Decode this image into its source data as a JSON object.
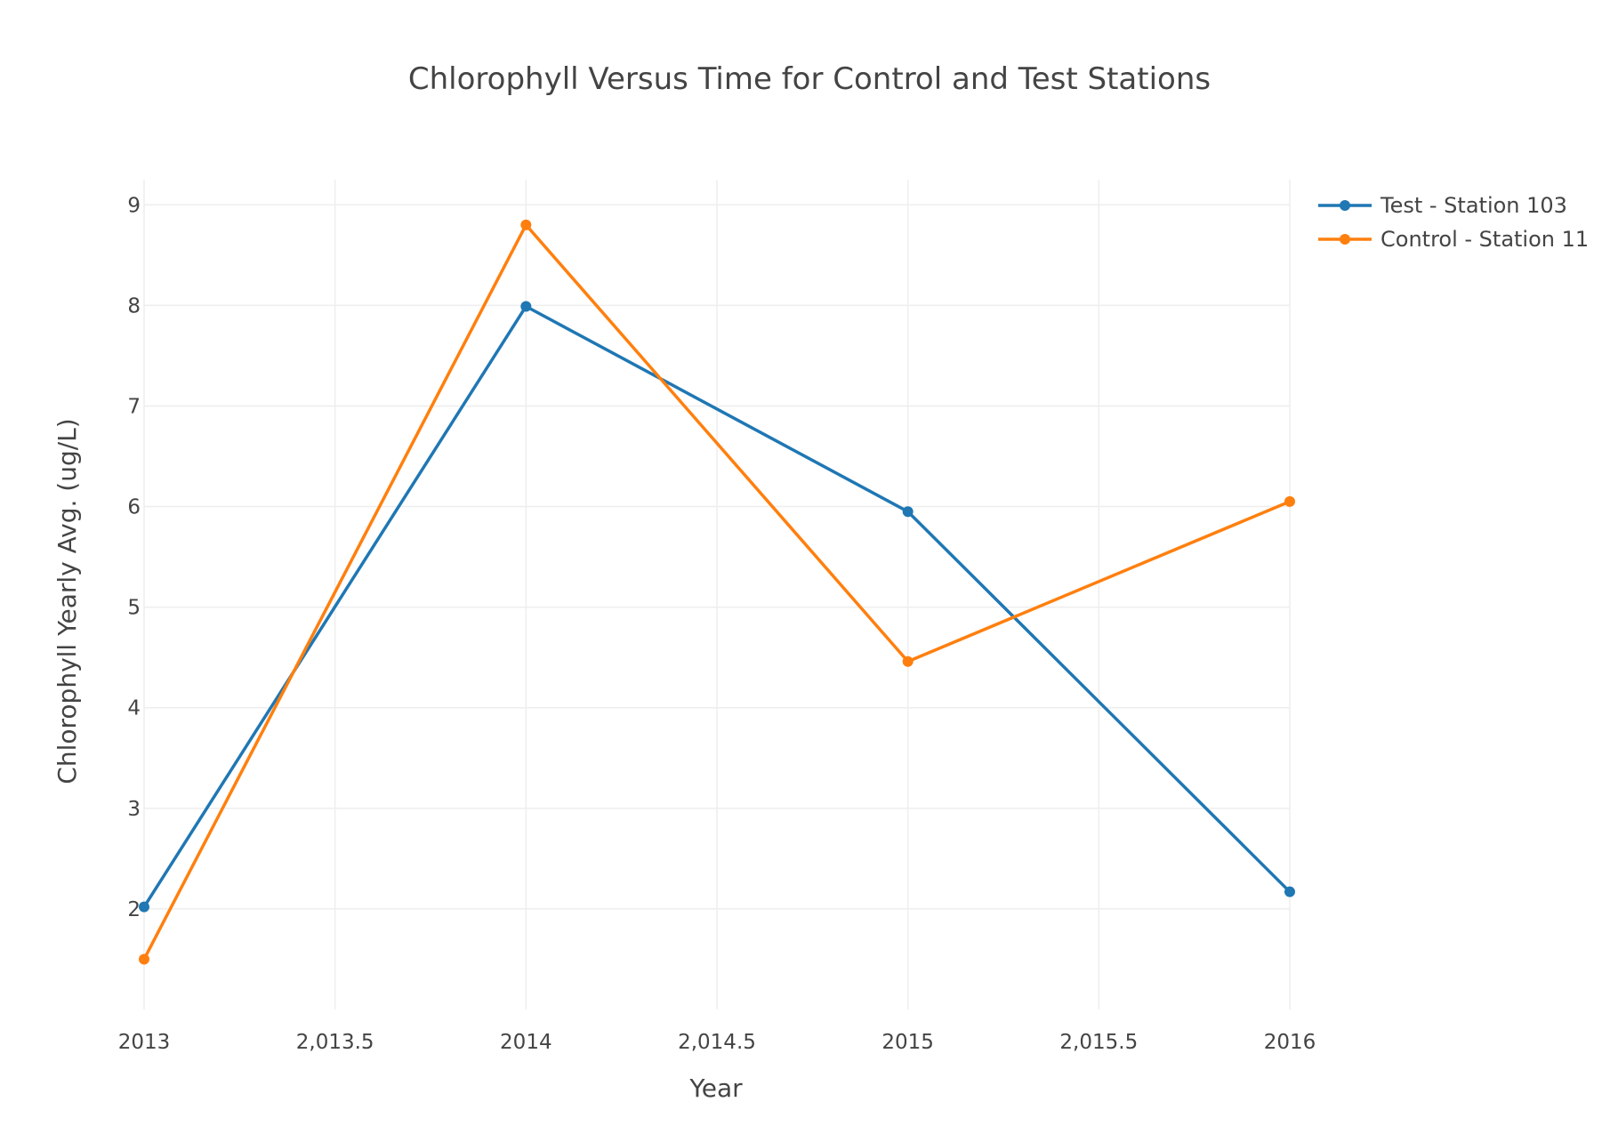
{
  "chart_data": {
    "type": "line",
    "title": "Chlorophyll Versus Time for Control and Test Stations",
    "xlabel": "Year",
    "ylabel": "Chlorophyll Yearly Avg. (ug/L)",
    "xlim": [
      2013,
      2016
    ],
    "ylim": [
      1.0,
      9.25
    ],
    "xticks": [
      2013,
      2013.5,
      2014,
      2014.5,
      2015,
      2015.5,
      2016
    ],
    "xtick_labels": [
      "2013",
      "2,013.5",
      "2014",
      "2,014.5",
      "2015",
      "2,015.5",
      "2016"
    ],
    "yticks": [
      2,
      3,
      4,
      5,
      6,
      7,
      8,
      9
    ],
    "ytick_labels": [
      "2",
      "3",
      "4",
      "5",
      "6",
      "7",
      "8",
      "9"
    ],
    "grid": true,
    "legend_position": "top-right",
    "series": [
      {
        "name": "Test - Station 103",
        "color": "#1f77b4",
        "x": [
          2013,
          2014,
          2015,
          2016
        ],
        "y": [
          2.02,
          7.99,
          5.95,
          2.17
        ]
      },
      {
        "name": "Control - Station 11",
        "color": "#ff7f0e",
        "x": [
          2013,
          2014,
          2015,
          2016
        ],
        "y": [
          1.5,
          8.8,
          4.46,
          6.05
        ]
      }
    ]
  }
}
